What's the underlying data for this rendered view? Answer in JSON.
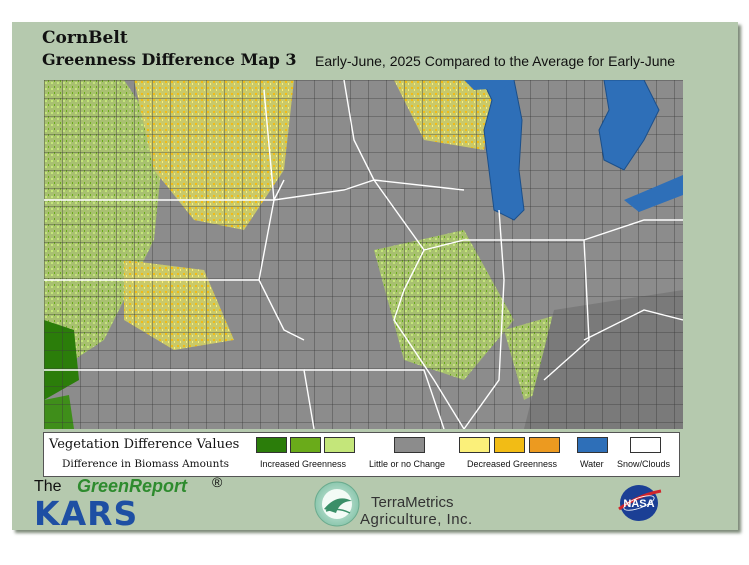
{
  "header": {
    "region": "CornBelt",
    "map_title": "Greenness Difference Map 3",
    "subtitle": "Early-June, 2025 Compared to the Average for Early-June"
  },
  "legend": {
    "title": "Vegetation Difference Values",
    "subtitle": "Difference in Biomass Amounts",
    "groups": [
      {
        "label": "Increased Greenness",
        "colors": [
          "#2b7d0a",
          "#6aab1a",
          "#c4e67a"
        ]
      },
      {
        "label": "Little or no Change",
        "colors": [
          "#8c8c8c"
        ]
      },
      {
        "label": "Decreased Greenness",
        "colors": [
          "#fbf07a",
          "#f2bc15",
          "#ec9a20"
        ]
      },
      {
        "label": "Water",
        "colors": [
          "#2e6fb8"
        ]
      },
      {
        "label": "Snow/Clouds",
        "colors": [
          "#ffffff"
        ]
      }
    ]
  },
  "footer": {
    "the": "The",
    "greenreport": "GreenReport",
    "registered": "®",
    "kars": "KARS",
    "terrametrics_line1": "TerraMetrics",
    "terrametrics_line2": "Agriculture, Inc.",
    "nasa": "NASA"
  }
}
